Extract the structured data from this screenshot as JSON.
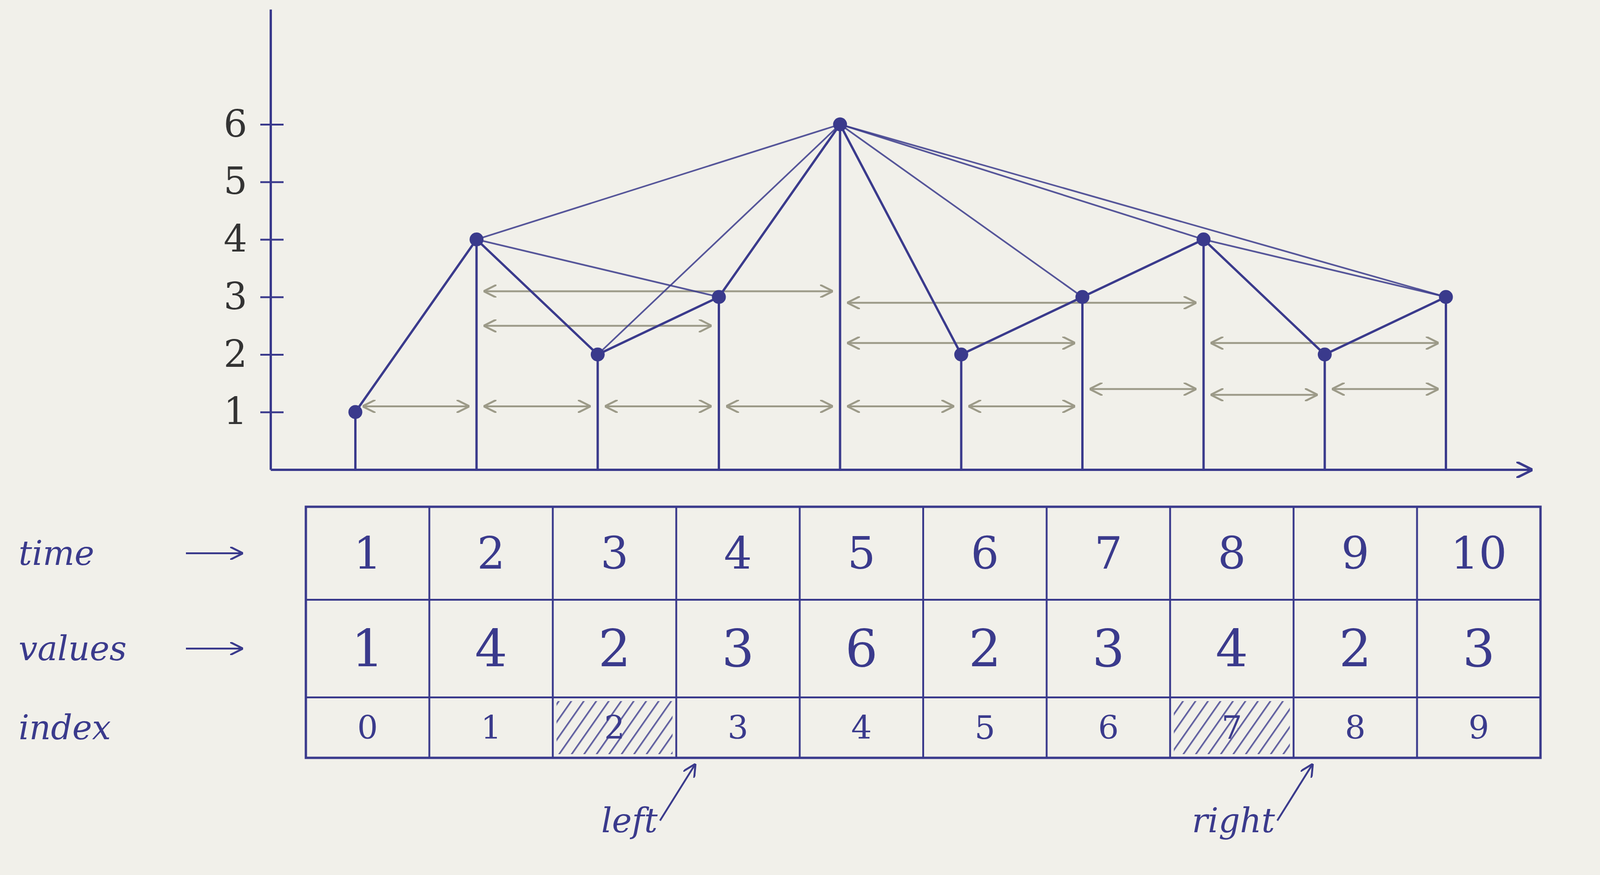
{
  "chart_data": {
    "type": "line",
    "x": [
      1,
      2,
      3,
      4,
      5,
      6,
      7,
      8,
      9,
      10
    ],
    "values": [
      1,
      4,
      2,
      3,
      6,
      2,
      3,
      4,
      2,
      3
    ],
    "color": "#3a3a8c",
    "marker": "circle",
    "xlim": [
      0.3,
      10.7
    ],
    "ylim": [
      0,
      8
    ],
    "yticks": [
      1,
      2,
      3,
      4,
      5,
      6
    ],
    "grid": false,
    "tick_labels": "y",
    "links": [
      [
        2,
        5
      ],
      [
        2,
        4
      ],
      [
        3,
        5
      ],
      [
        5,
        7
      ],
      [
        5,
        8
      ],
      [
        5,
        10
      ],
      [
        8,
        10
      ]
    ],
    "spans": [
      {
        "x": [
          1,
          2
        ],
        "y": 1.1
      },
      {
        "x": [
          2,
          3
        ],
        "y": 1.1
      },
      {
        "x": [
          3,
          4
        ],
        "y": 1.1
      },
      {
        "x": [
          4,
          5
        ],
        "y": 1.1
      },
      {
        "x": [
          5,
          6
        ],
        "y": 1.1
      },
      {
        "x": [
          6,
          7
        ],
        "y": 1.1
      },
      {
        "x": [
          7,
          8
        ],
        "y": 1.4
      },
      {
        "x": [
          8,
          9
        ],
        "y": 1.3
      },
      {
        "x": [
          9,
          10
        ],
        "y": 1.4
      },
      {
        "x": [
          2,
          5
        ],
        "y": 3.1
      },
      {
        "x": [
          2,
          4
        ],
        "y": 2.5
      },
      {
        "x": [
          5,
          8
        ],
        "y": 2.9
      },
      {
        "x": [
          5,
          7
        ],
        "y": 2.2
      },
      {
        "x": [
          8,
          10
        ],
        "y": 2.2
      }
    ],
    "table": {
      "row_labels": [
        "time",
        "values",
        "index"
      ],
      "index": [
        0,
        1,
        2,
        3,
        4,
        5,
        6,
        7,
        8,
        9
      ],
      "struck": [
        2,
        7
      ],
      "annotations": [
        {
          "text": "left",
          "at": 3
        },
        {
          "text": "right",
          "at": 8
        }
      ]
    }
  }
}
